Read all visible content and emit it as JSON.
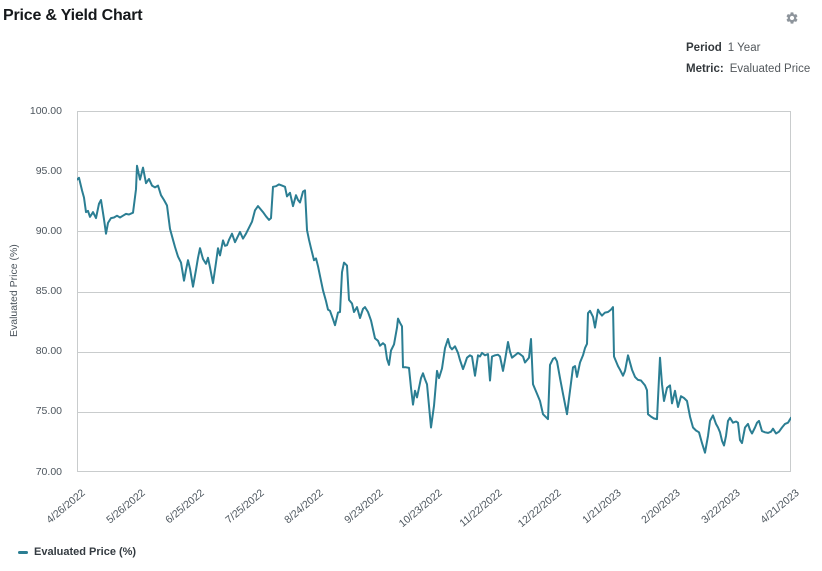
{
  "header": {
    "title": "Price & Yield Chart"
  },
  "controls": {
    "settings_icon": "gear-icon",
    "period_label": "Period",
    "period_value": "1 Year",
    "metric_label": "Metric:",
    "metric_value": "Evaluated Price"
  },
  "colors": {
    "line": "#2b7e93",
    "grid": "#c9cccd",
    "axis_text": "#4d565e",
    "title_text": "#15181b",
    "gear": "#8d949b"
  },
  "chart_data": {
    "type": "line",
    "title": "Price & Yield Chart",
    "xlabel": "",
    "ylabel": "Evaluated Price (%)",
    "ylim": [
      70,
      100
    ],
    "y_tick_step": 5,
    "grid": "horizontal",
    "legend_position": "bottom-left",
    "legend": [
      "Evaluated Price (%)"
    ],
    "y_ticks": [
      "100.00",
      "95.00",
      "90.00",
      "85.00",
      "80.00",
      "75.00",
      "70.00"
    ],
    "x_tick_labels": [
      "4/26/2022",
      "5/26/2022",
      "6/25/2022",
      "7/25/2022",
      "8/24/2022",
      "9/23/2022",
      "10/23/2022",
      "11/22/2022",
      "12/22/2022",
      "1/21/2023",
      "2/20/2023",
      "3/22/2023",
      "4/21/2023"
    ],
    "series": [
      {
        "name": "Evaluated Price (%)",
        "color": "#2b7e93",
        "x_unit": "plot-pixels 0-714 spanning 4/26/2022 to 4/21/2023",
        "points": [
          [
            0,
            94.3
          ],
          [
            2,
            94.45
          ],
          [
            5,
            93.4
          ],
          [
            7,
            92.8
          ],
          [
            9,
            91.6
          ],
          [
            11,
            91.7
          ],
          [
            13,
            91.2
          ],
          [
            16,
            91.6
          ],
          [
            19,
            91.1
          ],
          [
            22,
            92.3
          ],
          [
            24,
            92.6
          ],
          [
            27,
            91.0
          ],
          [
            29,
            89.8
          ],
          [
            31,
            90.7
          ],
          [
            34,
            91.1
          ],
          [
            37,
            91.15
          ],
          [
            40,
            91.3
          ],
          [
            43,
            91.15
          ],
          [
            46,
            91.3
          ],
          [
            49,
            91.45
          ],
          [
            52,
            91.4
          ],
          [
            56,
            91.55
          ],
          [
            59,
            93.5
          ],
          [
            60,
            95.45
          ],
          [
            63,
            94.3
          ],
          [
            66,
            95.3
          ],
          [
            69,
            94.0
          ],
          [
            72,
            94.35
          ],
          [
            75,
            93.8
          ],
          [
            78,
            93.65
          ],
          [
            81,
            93.8
          ],
          [
            84,
            93.0
          ],
          [
            87,
            92.6
          ],
          [
            90,
            92.15
          ],
          [
            93,
            90.2
          ],
          [
            96,
            89.3
          ],
          [
            98,
            88.7
          ],
          [
            101,
            87.9
          ],
          [
            104,
            87.4
          ],
          [
            107,
            85.9
          ],
          [
            109,
            86.8
          ],
          [
            111,
            87.6
          ],
          [
            113,
            86.9
          ],
          [
            116,
            85.4
          ],
          [
            119,
            86.8
          ],
          [
            121,
            87.8
          ],
          [
            123,
            88.6
          ],
          [
            126,
            87.7
          ],
          [
            129,
            87.3
          ],
          [
            131,
            87.8
          ],
          [
            133,
            87.0
          ],
          [
            136,
            85.7
          ],
          [
            139,
            87.4
          ],
          [
            141,
            88.6
          ],
          [
            143,
            88.0
          ],
          [
            146,
            89.25
          ],
          [
            148,
            88.8
          ],
          [
            150,
            88.85
          ],
          [
            152,
            89.3
          ],
          [
            155,
            89.8
          ],
          [
            158,
            89.1
          ],
          [
            161,
            89.6
          ],
          [
            163,
            89.95
          ],
          [
            166,
            89.4
          ],
          [
            169,
            89.8
          ],
          [
            172,
            90.3
          ],
          [
            175,
            90.8
          ],
          [
            178,
            91.75
          ],
          [
            181,
            92.1
          ],
          [
            183,
            91.9
          ],
          [
            186,
            91.6
          ],
          [
            189,
            91.25
          ],
          [
            192,
            90.95
          ],
          [
            194,
            91.1
          ],
          [
            196,
            93.7
          ],
          [
            199,
            93.75
          ],
          [
            202,
            93.9
          ],
          [
            205,
            93.8
          ],
          [
            208,
            93.7
          ],
          [
            210,
            92.9
          ],
          [
            213,
            93.2
          ],
          [
            216,
            92.1
          ],
          [
            219,
            93.0
          ],
          [
            221,
            92.6
          ],
          [
            223,
            92.4
          ],
          [
            226,
            93.3
          ],
          [
            228,
            93.4
          ],
          [
            230,
            90.1
          ],
          [
            232,
            89.3
          ],
          [
            234,
            88.6
          ],
          [
            237,
            87.6
          ],
          [
            239,
            87.75
          ],
          [
            241,
            87.1
          ],
          [
            243,
            86.3
          ],
          [
            246,
            85.1
          ],
          [
            249,
            84.2
          ],
          [
            251,
            83.5
          ],
          [
            253,
            83.4
          ],
          [
            256,
            82.7
          ],
          [
            258,
            82.2
          ],
          [
            261,
            83.25
          ],
          [
            263,
            83.3
          ],
          [
            265,
            86.6
          ],
          [
            267,
            87.4
          ],
          [
            270,
            87.15
          ],
          [
            272,
            84.3
          ],
          [
            275,
            84.0
          ],
          [
            277,
            83.3
          ],
          [
            280,
            83.7
          ],
          [
            283,
            82.8
          ],
          [
            286,
            83.55
          ],
          [
            288,
            83.7
          ],
          [
            291,
            83.3
          ],
          [
            294,
            82.6
          ],
          [
            298,
            81.1
          ],
          [
            301,
            80.9
          ],
          [
            303,
            80.5
          ],
          [
            306,
            80.7
          ],
          [
            308,
            80.55
          ],
          [
            310,
            79.4
          ],
          [
            312,
            78.9
          ],
          [
            314,
            80.1
          ],
          [
            317,
            80.6
          ],
          [
            320,
            82.0
          ],
          [
            321,
            82.75
          ],
          [
            323,
            82.4
          ],
          [
            325,
            82.1
          ],
          [
            326,
            78.7
          ],
          [
            329,
            78.7
          ],
          [
            332,
            78.65
          ],
          [
            334,
            77.0
          ],
          [
            336,
            75.6
          ],
          [
            338,
            76.75
          ],
          [
            340,
            76.2
          ],
          [
            342,
            77.0
          ],
          [
            344,
            77.8
          ],
          [
            346,
            78.2
          ],
          [
            348,
            77.7
          ],
          [
            350,
            77.3
          ],
          [
            352,
            75.5
          ],
          [
            354,
            73.7
          ],
          [
            357,
            75.5
          ],
          [
            360,
            78.4
          ],
          [
            362,
            77.8
          ],
          [
            365,
            78.6
          ],
          [
            368,
            80.3
          ],
          [
            371,
            81.05
          ],
          [
            373,
            80.4
          ],
          [
            375,
            80.2
          ],
          [
            378,
            80.45
          ],
          [
            381,
            79.9
          ],
          [
            383,
            79.3
          ],
          [
            386,
            78.55
          ],
          [
            388,
            79.0
          ],
          [
            390,
            79.5
          ],
          [
            393,
            79.7
          ],
          [
            395,
            79.6
          ],
          [
            398,
            78.0
          ],
          [
            401,
            79.7
          ],
          [
            403,
            79.6
          ],
          [
            405,
            79.9
          ],
          [
            408,
            79.7
          ],
          [
            411,
            79.8
          ],
          [
            413,
            77.6
          ],
          [
            415,
            79.6
          ],
          [
            418,
            79.7
          ],
          [
            421,
            79.75
          ],
          [
            423,
            79.6
          ],
          [
            426,
            78.4
          ],
          [
            428,
            79.3
          ],
          [
            430,
            80.3
          ],
          [
            431,
            80.8
          ],
          [
            433,
            80.0
          ],
          [
            435,
            79.5
          ],
          [
            438,
            79.7
          ],
          [
            441,
            79.9
          ],
          [
            443,
            79.8
          ],
          [
            446,
            79.6
          ],
          [
            448,
            79.1
          ],
          [
            450,
            79.3
          ],
          [
            452,
            79.5
          ],
          [
            454,
            81.05
          ],
          [
            456,
            77.3
          ],
          [
            458,
            76.9
          ],
          [
            460,
            76.5
          ],
          [
            463,
            75.9
          ],
          [
            466,
            74.8
          ],
          [
            469,
            74.55
          ],
          [
            471,
            74.4
          ],
          [
            473,
            78.9
          ],
          [
            476,
            79.4
          ],
          [
            478,
            79.5
          ],
          [
            480,
            79.2
          ],
          [
            483,
            77.8
          ],
          [
            486,
            76.5
          ],
          [
            490,
            74.8
          ],
          [
            493,
            76.75
          ],
          [
            496,
            78.7
          ],
          [
            498,
            78.8
          ],
          [
            500,
            77.9
          ],
          [
            503,
            79.1
          ],
          [
            506,
            79.7
          ],
          [
            508,
            80.3
          ],
          [
            510,
            80.65
          ],
          [
            511,
            83.2
          ],
          [
            513,
            83.4
          ],
          [
            516,
            82.9
          ],
          [
            518,
            82.0
          ],
          [
            521,
            83.5
          ],
          [
            523,
            83.2
          ],
          [
            525,
            83.0
          ],
          [
            528,
            83.25
          ],
          [
            531,
            83.3
          ],
          [
            534,
            83.5
          ],
          [
            536,
            83.7
          ],
          [
            537,
            79.6
          ],
          [
            541,
            78.8
          ],
          [
            543,
            78.5
          ],
          [
            546,
            78.0
          ],
          [
            548,
            78.4
          ],
          [
            551,
            79.7
          ],
          [
            555,
            78.5
          ],
          [
            558,
            77.9
          ],
          [
            561,
            77.65
          ],
          [
            564,
            77.6
          ],
          [
            568,
            77.2
          ],
          [
            570,
            76.8
          ],
          [
            571,
            74.8
          ],
          [
            574,
            74.6
          ],
          [
            577,
            74.45
          ],
          [
            580,
            74.4
          ],
          [
            583,
            79.5
          ],
          [
            585,
            77.3
          ],
          [
            587,
            75.9
          ],
          [
            590,
            77.0
          ],
          [
            593,
            77.2
          ],
          [
            595,
            75.7
          ],
          [
            598,
            76.75
          ],
          [
            601,
            75.4
          ],
          [
            604,
            76.3
          ],
          [
            607,
            76.15
          ],
          [
            610,
            75.9
          ],
          [
            613,
            74.6
          ],
          [
            616,
            73.7
          ],
          [
            619,
            73.45
          ],
          [
            622,
            73.3
          ],
          [
            625,
            72.4
          ],
          [
            628,
            71.6
          ],
          [
            631,
            73.0
          ],
          [
            633,
            74.25
          ],
          [
            636,
            74.7
          ],
          [
            639,
            74.0
          ],
          [
            641,
            73.7
          ],
          [
            643,
            73.3
          ],
          [
            645,
            72.6
          ],
          [
            647,
            72.2
          ],
          [
            649,
            73.0
          ],
          [
            651,
            74.25
          ],
          [
            653,
            74.5
          ],
          [
            656,
            74.1
          ],
          [
            659,
            74.2
          ],
          [
            661,
            74.1
          ],
          [
            663,
            72.65
          ],
          [
            665,
            72.4
          ],
          [
            668,
            73.7
          ],
          [
            671,
            74.0
          ],
          [
            673,
            73.5
          ],
          [
            675,
            73.2
          ],
          [
            678,
            73.7
          ],
          [
            680,
            74.1
          ],
          [
            682,
            74.25
          ],
          [
            685,
            73.4
          ],
          [
            688,
            73.3
          ],
          [
            691,
            73.25
          ],
          [
            694,
            73.35
          ],
          [
            696,
            73.6
          ],
          [
            699,
            73.2
          ],
          [
            702,
            73.35
          ],
          [
            705,
            73.7
          ],
          [
            708,
            74.0
          ],
          [
            711,
            74.1
          ],
          [
            714,
            74.5
          ]
        ]
      }
    ]
  }
}
